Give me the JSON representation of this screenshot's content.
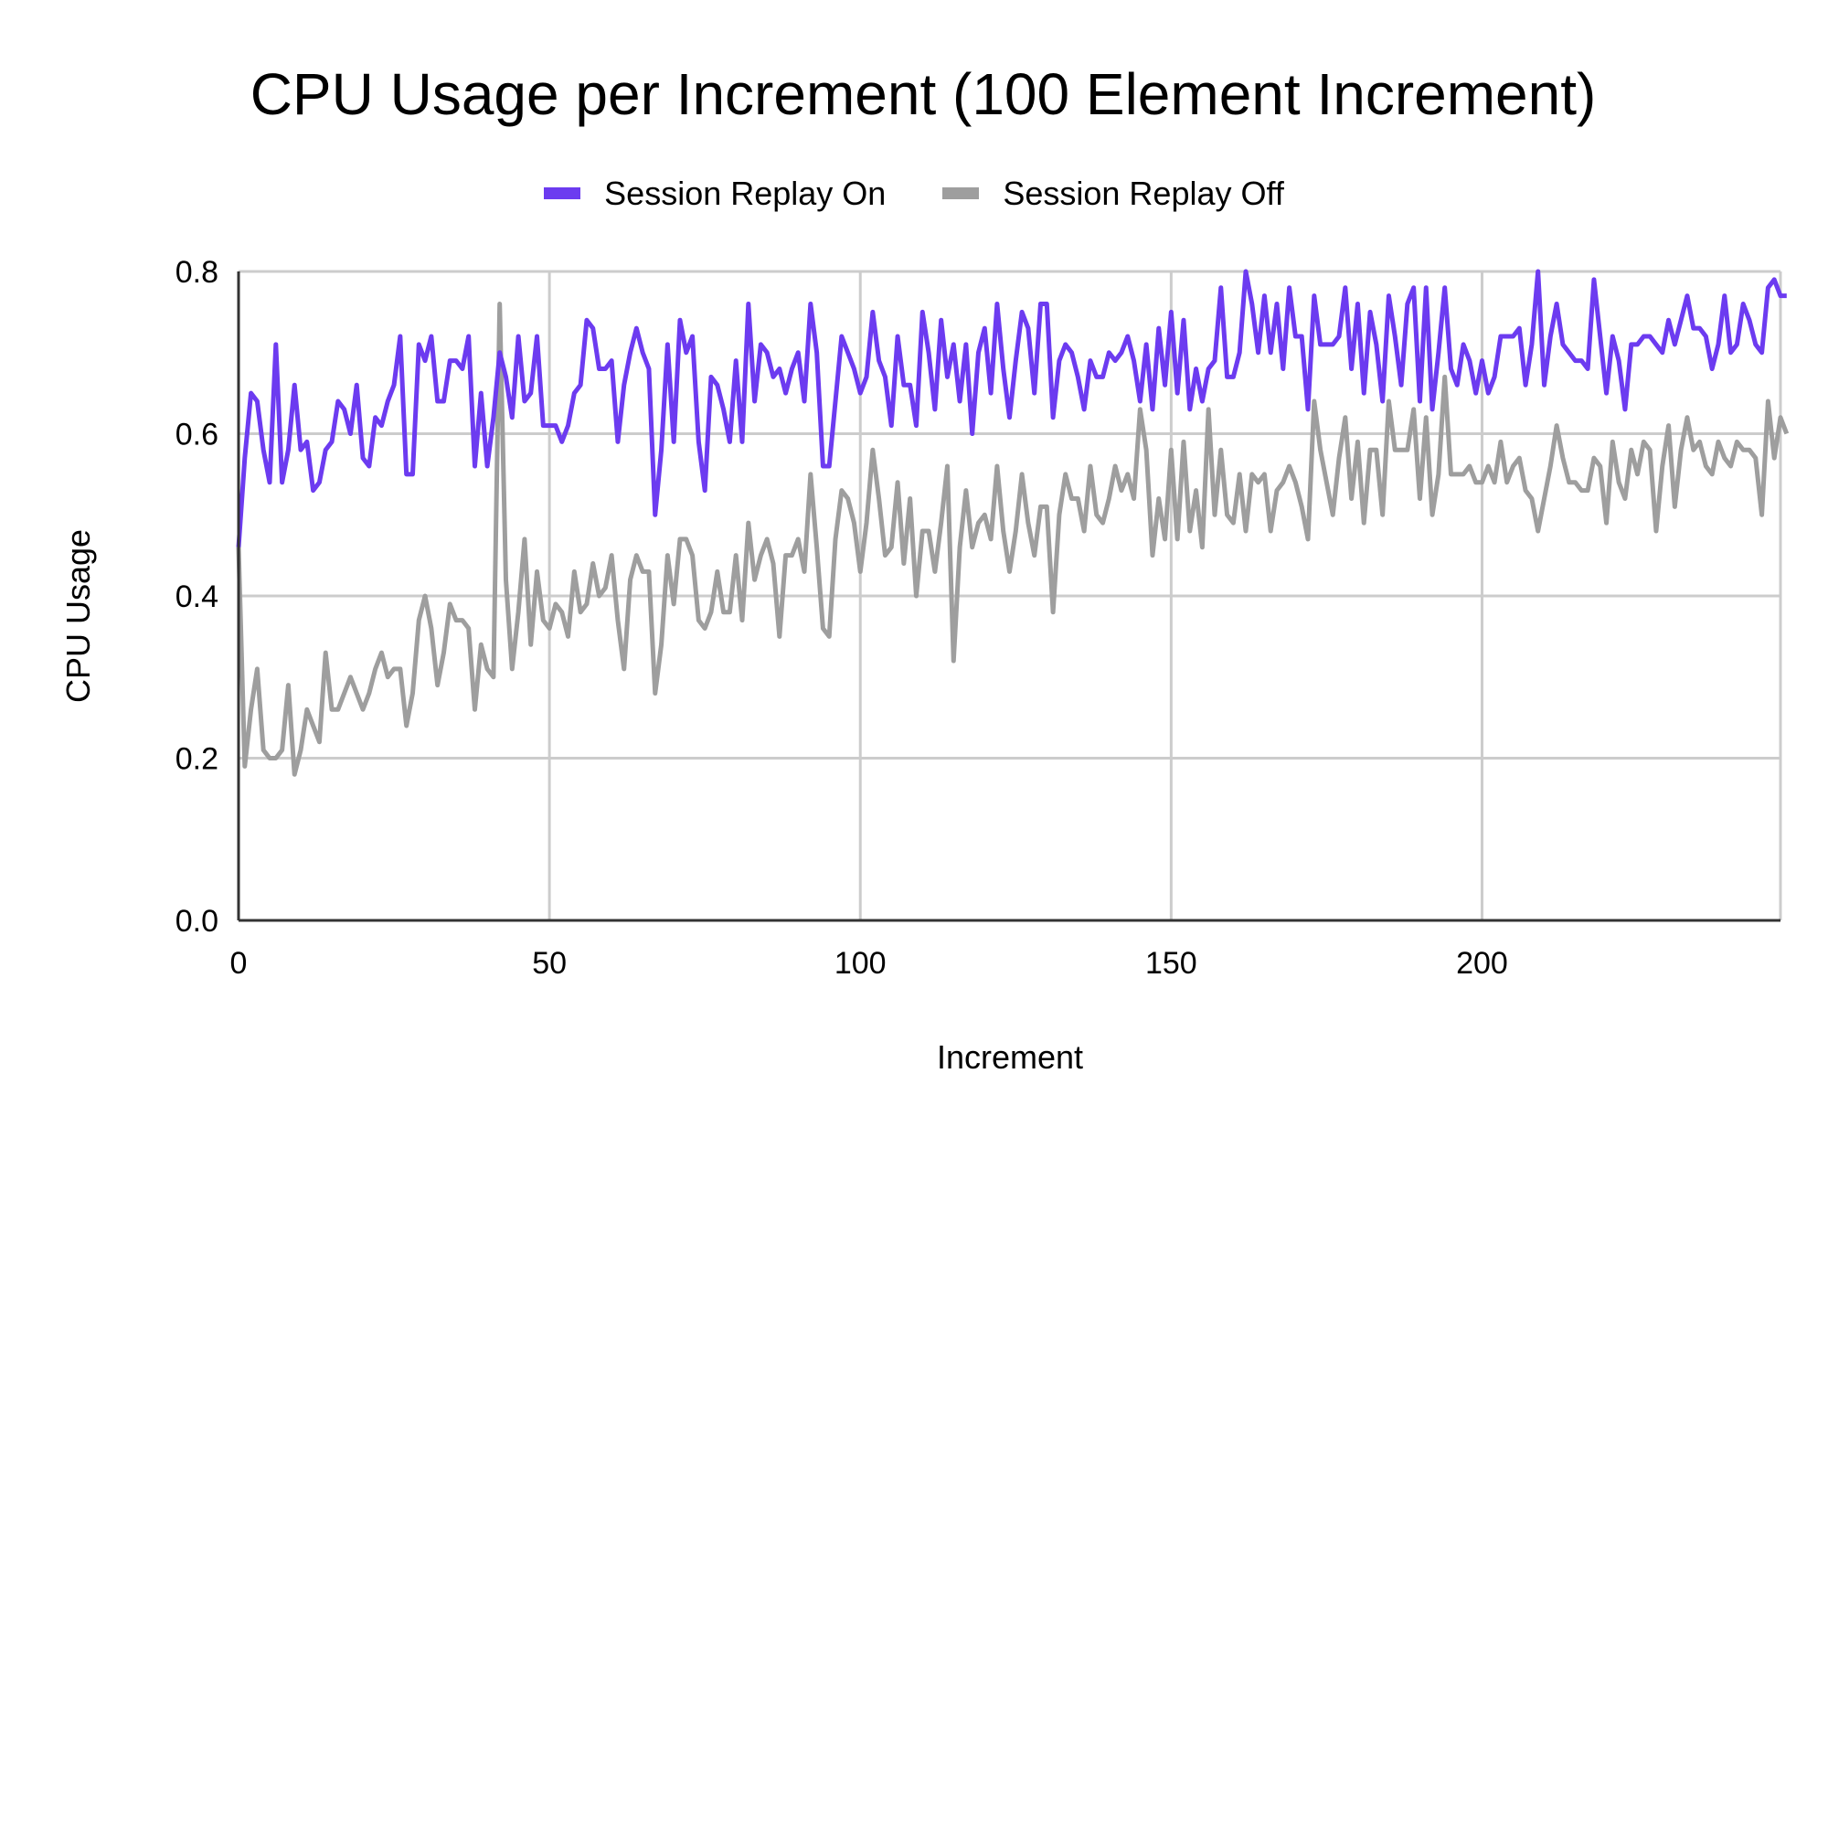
{
  "chart_data": {
    "type": "line",
    "title": "CPU Usage per Increment (100 Element Increment)",
    "xlabel": "Increment",
    "ylabel": "CPU Usage",
    "xlim": [
      0,
      248
    ],
    "ylim": [
      0,
      0.8
    ],
    "xticks": [
      0,
      50,
      100,
      150,
      200
    ],
    "yticks": [
      0.0,
      0.2,
      0.4,
      0.6,
      0.8
    ],
    "ytick_labels": [
      "0.0",
      "0.2",
      "0.4",
      "0.6",
      "0.8"
    ],
    "grid": true,
    "legend_position": "top-center",
    "series": [
      {
        "name": "Session Replay On",
        "color": "#6c3bf0",
        "x_start": 0,
        "x_step": 1,
        "values": [
          0.46,
          0.57,
          0.65,
          0.64,
          0.58,
          0.54,
          0.71,
          0.54,
          0.58,
          0.66,
          0.58,
          0.59,
          0.53,
          0.54,
          0.58,
          0.59,
          0.64,
          0.63,
          0.6,
          0.66,
          0.57,
          0.56,
          0.62,
          0.61,
          0.64,
          0.66,
          0.72,
          0.55,
          0.55,
          0.71,
          0.69,
          0.72,
          0.64,
          0.64,
          0.69,
          0.69,
          0.68,
          0.72,
          0.56,
          0.65,
          0.56,
          0.62,
          0.7,
          0.67,
          0.62,
          0.72,
          0.64,
          0.65,
          0.72,
          0.61,
          0.61,
          0.61,
          0.59,
          0.61,
          0.65,
          0.66,
          0.74,
          0.73,
          0.68,
          0.68,
          0.69,
          0.59,
          0.66,
          0.7,
          0.73,
          0.7,
          0.68,
          0.5,
          0.58,
          0.71,
          0.59,
          0.74,
          0.7,
          0.72,
          0.59,
          0.53,
          0.67,
          0.66,
          0.63,
          0.59,
          0.69,
          0.59,
          0.76,
          0.64,
          0.71,
          0.7,
          0.67,
          0.68,
          0.65,
          0.68,
          0.7,
          0.64,
          0.76,
          0.7,
          0.56,
          0.56,
          0.64,
          0.72,
          0.7,
          0.68,
          0.65,
          0.67,
          0.75,
          0.69,
          0.67,
          0.61,
          0.72,
          0.66,
          0.66,
          0.61,
          0.75,
          0.7,
          0.63,
          0.74,
          0.67,
          0.71,
          0.64,
          0.71,
          0.6,
          0.7,
          0.73,
          0.65,
          0.76,
          0.68,
          0.62,
          0.69,
          0.75,
          0.73,
          0.65,
          0.76,
          0.76,
          0.62,
          0.69,
          0.71,
          0.7,
          0.67,
          0.63,
          0.69,
          0.67,
          0.67,
          0.7,
          0.69,
          0.7,
          0.72,
          0.69,
          0.64,
          0.71,
          0.63,
          0.73,
          0.66,
          0.75,
          0.65,
          0.74,
          0.63,
          0.68,
          0.64,
          0.68,
          0.69,
          0.78,
          0.67,
          0.67,
          0.7,
          0.8,
          0.76,
          0.7,
          0.77,
          0.7,
          0.76,
          0.68,
          0.78,
          0.72,
          0.72,
          0.63,
          0.77,
          0.71,
          0.71,
          0.71,
          0.72,
          0.78,
          0.68,
          0.76,
          0.65,
          0.75,
          0.71,
          0.64,
          0.77,
          0.72,
          0.66,
          0.76,
          0.78,
          0.64,
          0.78,
          0.63,
          0.7,
          0.78,
          0.68,
          0.66,
          0.71,
          0.69,
          0.65,
          0.69,
          0.65,
          0.67,
          0.72,
          0.72,
          0.72,
          0.73,
          0.66,
          0.71,
          0.8,
          0.66,
          0.72,
          0.76,
          0.71,
          0.7,
          0.69,
          0.69,
          0.68,
          0.79,
          0.72,
          0.65,
          0.72,
          0.69,
          0.63,
          0.71,
          0.71,
          0.72,
          0.72,
          0.71,
          0.7,
          0.74,
          0.71,
          0.74,
          0.77,
          0.73,
          0.73,
          0.72,
          0.68,
          0.71,
          0.77,
          0.7,
          0.71,
          0.76,
          0.74,
          0.71,
          0.7,
          0.78,
          0.79,
          0.77,
          0.77
        ]
      },
      {
        "name": "Session Replay Off",
        "color": "#9e9e9e",
        "x_start": 0,
        "x_step": 1,
        "values": [
          0.46,
          0.19,
          0.26,
          0.31,
          0.21,
          0.2,
          0.2,
          0.21,
          0.29,
          0.18,
          0.21,
          0.26,
          0.24,
          0.22,
          0.33,
          0.26,
          0.26,
          0.28,
          0.3,
          0.28,
          0.26,
          0.28,
          0.31,
          0.33,
          0.3,
          0.31,
          0.31,
          0.24,
          0.28,
          0.37,
          0.4,
          0.36,
          0.29,
          0.33,
          0.39,
          0.37,
          0.37,
          0.36,
          0.26,
          0.34,
          0.31,
          0.3,
          0.76,
          0.42,
          0.31,
          0.38,
          0.47,
          0.34,
          0.43,
          0.37,
          0.36,
          0.39,
          0.38,
          0.35,
          0.43,
          0.38,
          0.39,
          0.44,
          0.4,
          0.41,
          0.45,
          0.37,
          0.31,
          0.42,
          0.45,
          0.43,
          0.43,
          0.28,
          0.34,
          0.45,
          0.39,
          0.47,
          0.47,
          0.45,
          0.37,
          0.36,
          0.38,
          0.43,
          0.38,
          0.38,
          0.45,
          0.37,
          0.49,
          0.42,
          0.45,
          0.47,
          0.44,
          0.35,
          0.45,
          0.45,
          0.47,
          0.43,
          0.55,
          0.46,
          0.36,
          0.35,
          0.47,
          0.53,
          0.52,
          0.49,
          0.43,
          0.49,
          0.58,
          0.52,
          0.45,
          0.46,
          0.54,
          0.44,
          0.52,
          0.4,
          0.48,
          0.48,
          0.43,
          0.49,
          0.56,
          0.32,
          0.46,
          0.53,
          0.46,
          0.49,
          0.5,
          0.47,
          0.56,
          0.48,
          0.43,
          0.48,
          0.55,
          0.49,
          0.45,
          0.51,
          0.51,
          0.38,
          0.5,
          0.55,
          0.52,
          0.52,
          0.48,
          0.56,
          0.5,
          0.49,
          0.52,
          0.56,
          0.53,
          0.55,
          0.52,
          0.63,
          0.58,
          0.45,
          0.52,
          0.47,
          0.58,
          0.47,
          0.59,
          0.48,
          0.53,
          0.46,
          0.63,
          0.5,
          0.58,
          0.5,
          0.49,
          0.55,
          0.48,
          0.55,
          0.54,
          0.55,
          0.48,
          0.53,
          0.54,
          0.56,
          0.54,
          0.51,
          0.47,
          0.64,
          0.58,
          0.54,
          0.5,
          0.57,
          0.62,
          0.52,
          0.59,
          0.49,
          0.58,
          0.58,
          0.5,
          0.64,
          0.58,
          0.58,
          0.58,
          0.63,
          0.52,
          0.62,
          0.5,
          0.55,
          0.67,
          0.55,
          0.55,
          0.55,
          0.56,
          0.54,
          0.54,
          0.56,
          0.54,
          0.59,
          0.54,
          0.56,
          0.57,
          0.53,
          0.52,
          0.48,
          0.52,
          0.56,
          0.61,
          0.57,
          0.54,
          0.54,
          0.53,
          0.53,
          0.57,
          0.56,
          0.49,
          0.59,
          0.54,
          0.52,
          0.58,
          0.55,
          0.59,
          0.58,
          0.48,
          0.56,
          0.61,
          0.51,
          0.58,
          0.62,
          0.58,
          0.59,
          0.56,
          0.55,
          0.59,
          0.57,
          0.56,
          0.59,
          0.58,
          0.58,
          0.57,
          0.5,
          0.64,
          0.57,
          0.62,
          0.6
        ]
      }
    ]
  }
}
